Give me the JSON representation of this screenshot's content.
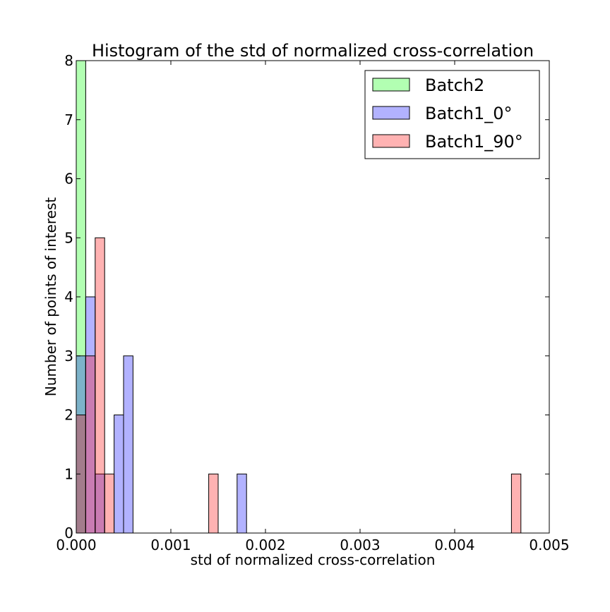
{
  "chart_data": {
    "type": "bar",
    "title": "Histogram of the std of normalized cross-correlation",
    "xlabel": "std of normalized cross-correlation",
    "ylabel": "Number of points of interest",
    "xlim": [
      0.0,
      0.005
    ],
    "ylim": [
      0,
      8
    ],
    "x_ticks": [
      0.0,
      0.001,
      0.002,
      0.003,
      0.004,
      0.005
    ],
    "x_tick_labels": [
      "0.000",
      "0.001",
      "0.002",
      "0.003",
      "0.004",
      "0.005"
    ],
    "y_ticks": [
      0,
      1,
      2,
      3,
      4,
      5,
      6,
      7,
      8
    ],
    "y_tick_labels": [
      "0",
      "1",
      "2",
      "3",
      "4",
      "5",
      "6",
      "7",
      "8"
    ],
    "grid": false,
    "legend_position": "top-right",
    "bin_width": 0.0001,
    "series": [
      {
        "name": "Batch2",
        "color": "#00ff00",
        "bins": [
          {
            "x": 0.0,
            "value": 8
          }
        ]
      },
      {
        "name": "Batch1_0°",
        "color": "#0000ff",
        "bins": [
          {
            "x": 0.0,
            "value": 3
          },
          {
            "x": 0.0001,
            "value": 4
          },
          {
            "x": 0.0002,
            "value": 1
          },
          {
            "x": 0.0004,
            "value": 2
          },
          {
            "x": 0.0005,
            "value": 3
          },
          {
            "x": 0.0017,
            "value": 1
          }
        ]
      },
      {
        "name": "Batch1_90°",
        "color": "#ff0000",
        "bins": [
          {
            "x": 0.0,
            "value": 2
          },
          {
            "x": 0.0001,
            "value": 3
          },
          {
            "x": 0.0002,
            "value": 5
          },
          {
            "x": 0.0003,
            "value": 1
          },
          {
            "x": 0.0014,
            "value": 1
          },
          {
            "x": 0.0046,
            "value": 1
          }
        ]
      }
    ]
  }
}
